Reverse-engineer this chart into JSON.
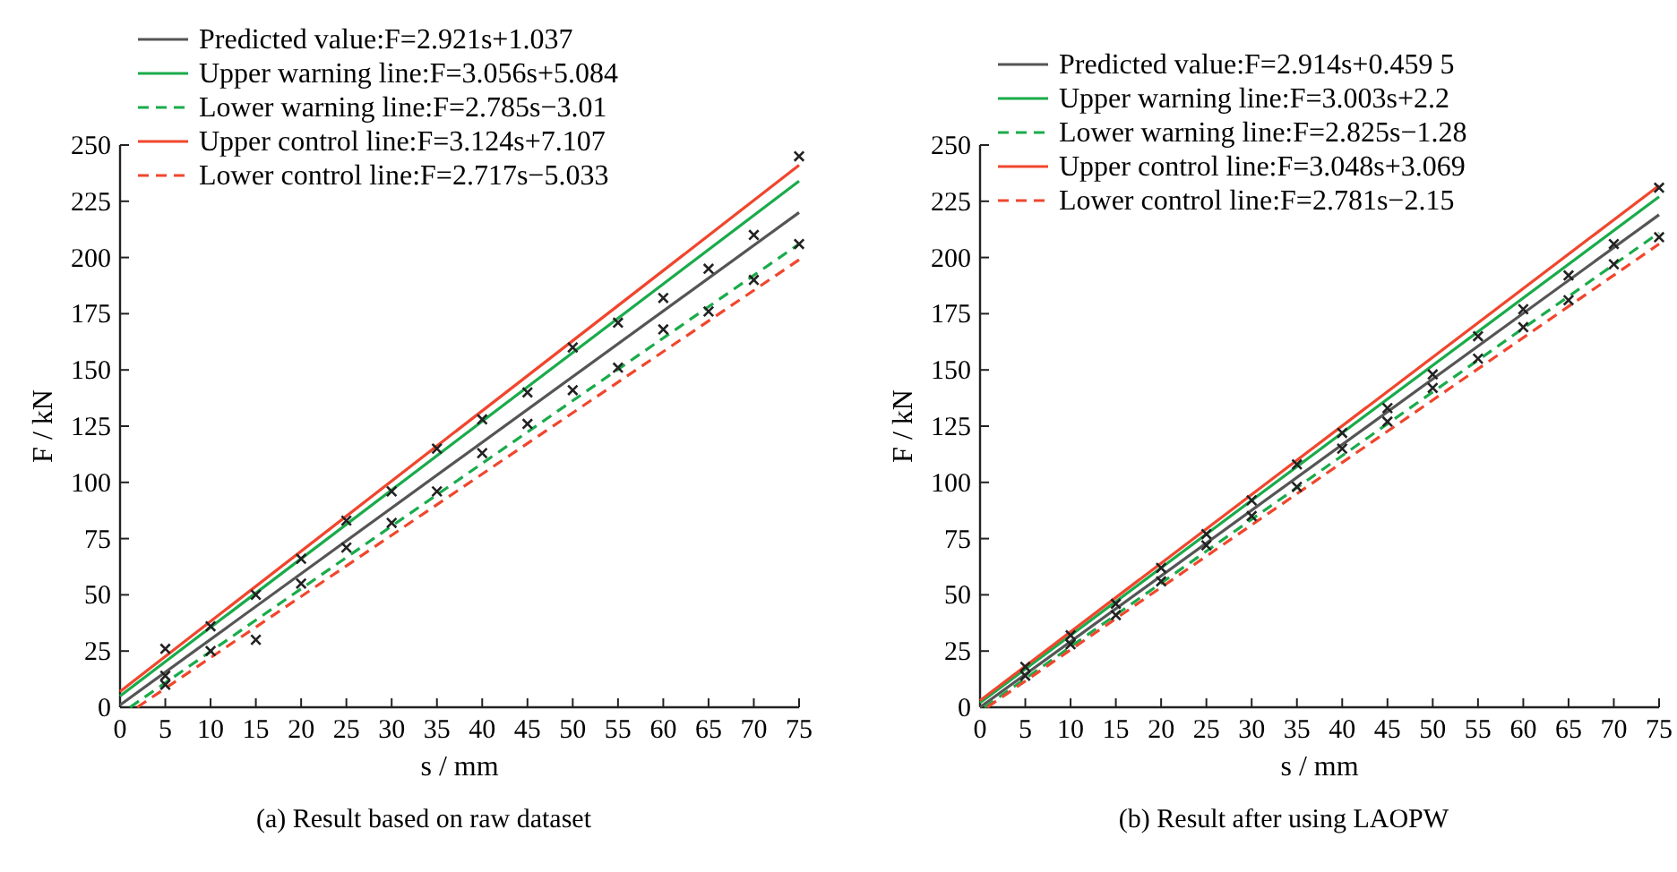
{
  "chart_data": [
    {
      "type": "line",
      "title": "(a) Result based on raw dataset",
      "xlabel": "s / mm",
      "ylabel": "F / kN",
      "xlim": [
        0,
        75
      ],
      "ylim": [
        0,
        250
      ],
      "xticks": [
        0,
        5,
        10,
        15,
        20,
        25,
        30,
        35,
        40,
        45,
        50,
        55,
        60,
        65,
        70,
        75
      ],
      "yticks": [
        0,
        25,
        50,
        75,
        100,
        125,
        150,
        175,
        200,
        225,
        250
      ],
      "legend": "top left",
      "series": [
        {
          "name": "Predicted value:F=2.921s+1.037",
          "color": "#555555",
          "x": [
            0,
            75
          ],
          "values": [
            1,
            220
          ]
        },
        {
          "name": "Upper warning line:F=3.056s+5.084",
          "color": "#1aab4b",
          "x": [
            0,
            75
          ],
          "values": [
            5,
            234
          ]
        },
        {
          "name": "Lower warning line:F=2.785s−3.01",
          "color": "#1aab4b",
          "line_style": "dashed",
          "x": [
            1.1,
            75
          ],
          "values": [
            0,
            206
          ]
        },
        {
          "name": "Upper control line:F=3.124s+7.107",
          "color": "#f0462d",
          "x": [
            0,
            75
          ],
          "values": [
            7,
            241
          ]
        },
        {
          "name": "Lower control line:F=2.717s−5.033",
          "color": "#f0462d",
          "line_style": "dashed",
          "x": [
            1.9,
            75
          ],
          "values": [
            0,
            199
          ]
        },
        {
          "type": "scatter",
          "color": "#222222",
          "marker": "cross",
          "x": [
            5,
            10,
            15,
            20,
            25,
            30,
            35,
            40,
            45,
            50,
            55,
            60,
            65,
            70,
            75,
            5,
            5,
            10,
            15,
            20,
            25,
            30,
            35,
            40,
            45,
            50,
            55,
            60,
            65,
            70,
            75
          ],
          "values": [
            26,
            36,
            50,
            66,
            83,
            96,
            115,
            128,
            140,
            160,
            171,
            182,
            195,
            210,
            245,
            14,
            10,
            25,
            30,
            55,
            71,
            82,
            96,
            113,
            126,
            141,
            151,
            168,
            176,
            190,
            206
          ]
        }
      ]
    },
    {
      "type": "line",
      "title": "(b) Result after using LAOPW",
      "xlabel": "s / mm",
      "ylabel": "F / kN",
      "xlim": [
        0,
        75
      ],
      "ylim": [
        0,
        250
      ],
      "xticks": [
        0,
        5,
        10,
        15,
        20,
        25,
        30,
        35,
        40,
        45,
        50,
        55,
        60,
        65,
        70,
        75
      ],
      "yticks": [
        0,
        25,
        50,
        75,
        100,
        125,
        150,
        175,
        200,
        225,
        250
      ],
      "legend": "top left",
      "series": [
        {
          "name": "Predicted value:F=2.914s+0.459 5",
          "color": "#555555",
          "x": [
            0,
            75
          ],
          "values": [
            0,
            219
          ]
        },
        {
          "name": "Upper warning line:F=3.003s+2.2",
          "color": "#1aab4b",
          "x": [
            0,
            75
          ],
          "values": [
            2,
            227
          ]
        },
        {
          "name": "Lower warning line:F=2.825s−1.28",
          "color": "#1aab4b",
          "line_style": "dashed",
          "x": [
            0.5,
            75
          ],
          "values": [
            0,
            211
          ]
        },
        {
          "name": "Upper control line:F=3.048s+3.069",
          "color": "#f0462d",
          "x": [
            0,
            75
          ],
          "values": [
            3,
            232
          ]
        },
        {
          "name": "Lower control line:F=2.781s−2.15",
          "color": "#f0462d",
          "line_style": "dashed",
          "x": [
            0.8,
            75
          ],
          "values": [
            0,
            206
          ]
        },
        {
          "type": "scatter",
          "color": "#222222",
          "marker": "cross",
          "x": [
            5,
            10,
            15,
            20,
            25,
            30,
            35,
            40,
            45,
            50,
            55,
            60,
            65,
            70,
            75,
            5,
            10,
            15,
            20,
            25,
            30,
            35,
            40,
            45,
            50,
            55,
            60,
            65,
            70,
            75
          ],
          "values": [
            18,
            32,
            46,
            62,
            77,
            92,
            108,
            122,
            133,
            148,
            165,
            177,
            192,
            206,
            231,
            14,
            28,
            41,
            56,
            72,
            85,
            98,
            115,
            127,
            142,
            155,
            169,
            181,
            197,
            209
          ]
        }
      ]
    }
  ]
}
